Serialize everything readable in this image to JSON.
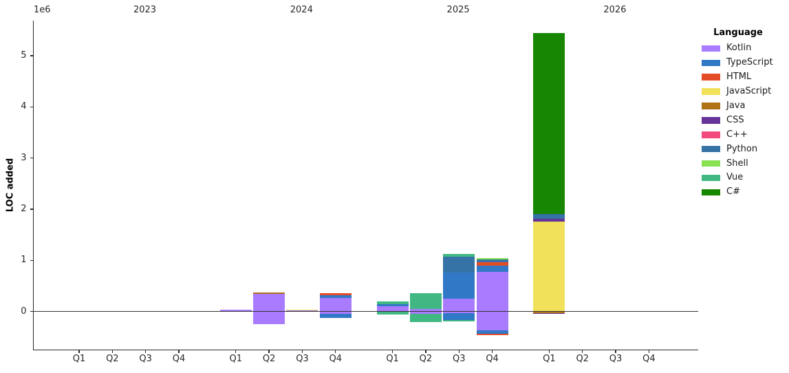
{
  "chart_data": {
    "type": "bar",
    "stacked": true,
    "title": "",
    "ylabel": "LOC added",
    "y_scale_note": "1e6",
    "unit": "millions of lines (1e6)",
    "grid": false,
    "legend_position": "right",
    "legend_title": "Language",
    "y_tick_values": [
      0,
      1,
      2,
      3,
      4,
      5
    ],
    "ylim": [
      -0.75,
      5.69
    ],
    "years": [
      "2023",
      "2024",
      "2025",
      "2026"
    ],
    "quarters": [
      "Q1",
      "Q2",
      "Q3",
      "Q4"
    ],
    "languages": [
      {
        "name": "Kotlin",
        "color": "#a97bff"
      },
      {
        "name": "TypeScript",
        "color": "#3178c6"
      },
      {
        "name": "HTML",
        "color": "#e34c26"
      },
      {
        "name": "JavaScript",
        "color": "#f1e05a"
      },
      {
        "name": "Java",
        "color": "#b07219"
      },
      {
        "name": "CSS",
        "color": "#663399"
      },
      {
        "name": "C++",
        "color": "#f34b7d"
      },
      {
        "name": "Python",
        "color": "#3572a5"
      },
      {
        "name": "Shell",
        "color": "#89e051"
      },
      {
        "name": "Vue",
        "color": "#41b883"
      },
      {
        "name": "C#",
        "color": "#178600"
      }
    ],
    "bars": [
      {
        "year": "2023",
        "quarter": "Q1",
        "positive": [],
        "negative": []
      },
      {
        "year": "2023",
        "quarter": "Q2",
        "positive": [],
        "negative": []
      },
      {
        "year": "2023",
        "quarter": "Q3",
        "positive": [],
        "negative": []
      },
      {
        "year": "2023",
        "quarter": "Q4",
        "positive": [],
        "negative": []
      },
      {
        "year": "2024",
        "quarter": "Q1",
        "positive": [
          {
            "language": "Kotlin",
            "loc": 0.035
          }
        ],
        "negative": []
      },
      {
        "year": "2024",
        "quarter": "Q2",
        "positive": [
          {
            "language": "Kotlin",
            "loc": 0.346
          },
          {
            "language": "Java",
            "loc": 0.027
          }
        ],
        "negative": [
          {
            "language": "Kotlin",
            "loc": -0.246
          }
        ]
      },
      {
        "year": "2024",
        "quarter": "Q3",
        "positive": [
          {
            "language": "Kotlin",
            "loc": 0.018
          },
          {
            "language": "JavaScript",
            "loc": 0.022
          }
        ],
        "negative": []
      },
      {
        "year": "2024",
        "quarter": "Q4",
        "positive": [
          {
            "language": "Kotlin",
            "loc": 0.265
          },
          {
            "language": "TypeScript",
            "loc": 0.054
          },
          {
            "language": "HTML",
            "loc": 0.04
          }
        ],
        "negative": [
          {
            "language": "Kotlin",
            "loc": -0.048
          },
          {
            "language": "TypeScript",
            "loc": -0.077
          }
        ]
      },
      {
        "year": "2025",
        "quarter": "Q1",
        "positive": [
          {
            "language": "Kotlin",
            "loc": 0.104
          },
          {
            "language": "TypeScript",
            "loc": 0.045
          },
          {
            "language": "Vue",
            "loc": 0.046
          }
        ],
        "negative": [
          {
            "language": "Vue",
            "loc": -0.055
          }
        ]
      },
      {
        "year": "2025",
        "quarter": "Q2",
        "positive": [
          {
            "language": "Kotlin",
            "loc": 0.046
          },
          {
            "language": "Vue",
            "loc": 0.315
          }
        ],
        "negative": [
          {
            "language": "Kotlin",
            "loc": -0.045
          },
          {
            "language": "Vue",
            "loc": -0.165
          }
        ]
      },
      {
        "year": "2025",
        "quarter": "Q3",
        "positive": [
          {
            "language": "Kotlin",
            "loc": 0.247
          },
          {
            "language": "TypeScript",
            "loc": 0.52
          },
          {
            "language": "Python",
            "loc": 0.31
          },
          {
            "language": "Vue",
            "loc": 0.05
          }
        ],
        "negative": [
          {
            "language": "Kotlin",
            "loc": -0.03
          },
          {
            "language": "TypeScript",
            "loc": -0.135
          },
          {
            "language": "Vue",
            "loc": -0.03
          }
        ]
      },
      {
        "year": "2025",
        "quarter": "Q4",
        "positive": [
          {
            "language": "Kotlin",
            "loc": 0.774
          },
          {
            "language": "TypeScript",
            "loc": 0.121
          },
          {
            "language": "HTML",
            "loc": 0.067
          },
          {
            "language": "Python",
            "loc": 0.058
          },
          {
            "language": "Shell",
            "loc": 0.031
          }
        ],
        "negative": [
          {
            "language": "Kotlin",
            "loc": -0.368
          },
          {
            "language": "TypeScript",
            "loc": -0.067
          },
          {
            "language": "HTML",
            "loc": -0.031
          }
        ]
      },
      {
        "year": "2026",
        "quarter": "Q1",
        "positive": [
          {
            "language": "JavaScript",
            "loc": 1.756
          },
          {
            "language": "CSS",
            "loc": 0.054
          },
          {
            "language": "Python",
            "loc": 0.09
          },
          {
            "language": "C#",
            "loc": 3.54
          }
        ],
        "negative": [
          {
            "language": "Java",
            "loc": -0.025
          },
          {
            "language": "CSS",
            "loc": -0.025
          }
        ]
      },
      {
        "year": "2026",
        "quarter": "Q2",
        "positive": [],
        "negative": []
      },
      {
        "year": "2026",
        "quarter": "Q3",
        "positive": [],
        "negative": []
      },
      {
        "year": "2026",
        "quarter": "Q4",
        "positive": [],
        "negative": []
      }
    ]
  }
}
